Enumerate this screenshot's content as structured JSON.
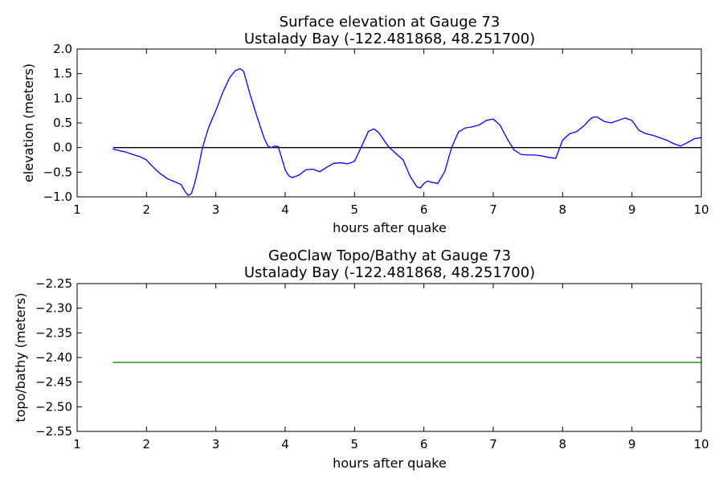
{
  "chart_data": [
    {
      "type": "line",
      "title_line1": "Surface elevation at Gauge 73",
      "title_line2": "Ustalady Bay  (-122.481868, 48.251700)",
      "xlabel": "hours after quake",
      "ylabel": "elevation (meters)",
      "xlim": [
        1,
        10
      ],
      "ylim": [
        -1.0,
        2.0
      ],
      "xticks": [
        1,
        2,
        3,
        4,
        5,
        6,
        7,
        8,
        9,
        10
      ],
      "xtick_labels": [
        "1",
        "2",
        "3",
        "4",
        "5",
        "6",
        "7",
        "8",
        "9",
        "10"
      ],
      "yticks": [
        -1.0,
        -0.5,
        0.0,
        0.5,
        1.0,
        1.5,
        2.0
      ],
      "ytick_labels": [
        "−1.0",
        "−0.5",
        "0.0",
        "0.5",
        "1.0",
        "1.5",
        "2.0"
      ],
      "grid": false,
      "reference_line": {
        "y": 0,
        "x": [
          1.52,
          10
        ],
        "color": "#000000"
      },
      "series": [
        {
          "color": "#0000ff",
          "x": [
            1.52,
            1.6,
            1.7,
            1.8,
            1.9,
            2.0,
            2.05,
            2.1,
            2.15,
            2.2,
            2.3,
            2.4,
            2.5,
            2.55,
            2.6,
            2.65,
            2.7,
            2.75,
            2.8,
            2.85,
            2.9,
            3.0,
            3.1,
            3.2,
            3.28,
            3.35,
            3.4,
            3.5,
            3.6,
            3.7,
            3.75,
            3.8,
            3.85,
            3.9,
            4.0,
            4.05,
            4.1,
            4.2,
            4.3,
            4.4,
            4.5,
            4.6,
            4.7,
            4.8,
            4.9,
            5.0,
            5.1,
            5.2,
            5.28,
            5.35,
            5.5,
            5.7,
            5.8,
            5.9,
            5.95,
            6.0,
            6.05,
            6.1,
            6.2,
            6.3,
            6.4,
            6.5,
            6.6,
            6.7,
            6.8,
            6.9,
            7.0,
            7.1,
            7.2,
            7.3,
            7.4,
            7.5,
            7.6,
            7.7,
            7.8,
            7.9,
            8.0,
            8.1,
            8.2,
            8.3,
            8.4,
            8.45,
            8.5,
            8.6,
            8.7,
            8.8,
            8.9,
            9.0,
            9.1,
            9.2,
            9.3,
            9.4,
            9.5,
            9.6,
            9.7,
            9.8,
            9.9,
            10.0
          ],
          "y": [
            -0.03,
            -0.06,
            -0.09,
            -0.14,
            -0.18,
            -0.25,
            -0.33,
            -0.4,
            -0.47,
            -0.53,
            -0.63,
            -0.69,
            -0.75,
            -0.88,
            -0.97,
            -0.93,
            -0.7,
            -0.4,
            -0.05,
            0.2,
            0.42,
            0.75,
            1.12,
            1.42,
            1.56,
            1.6,
            1.55,
            1.05,
            0.6,
            0.18,
            0.03,
            0.0,
            0.03,
            0.02,
            -0.45,
            -0.57,
            -0.61,
            -0.56,
            -0.45,
            -0.44,
            -0.49,
            -0.4,
            -0.32,
            -0.31,
            -0.33,
            -0.28,
            0.02,
            0.33,
            0.38,
            0.3,
            0.0,
            -0.25,
            -0.58,
            -0.8,
            -0.82,
            -0.73,
            -0.68,
            -0.7,
            -0.73,
            -0.49,
            0.0,
            0.32,
            0.4,
            0.42,
            0.46,
            0.55,
            0.58,
            0.45,
            0.18,
            -0.05,
            -0.14,
            -0.15,
            -0.15,
            -0.17,
            -0.2,
            -0.22,
            0.15,
            0.28,
            0.32,
            0.43,
            0.58,
            0.62,
            0.62,
            0.53,
            0.5,
            0.55,
            0.6,
            0.55,
            0.35,
            0.28,
            0.25,
            0.2,
            0.15,
            0.08,
            0.03,
            0.1,
            0.18,
            0.2
          ]
        }
      ]
    },
    {
      "type": "line",
      "title_line1": "GeoClaw Topo/Bathy at Gauge 73",
      "title_line2": "Ustalady Bay  (-122.481868, 48.251700)",
      "xlabel": "hours after quake",
      "ylabel": "topo/bathy (meters)",
      "xlim": [
        1,
        10
      ],
      "ylim": [
        -2.55,
        -2.25
      ],
      "xticks": [
        1,
        2,
        3,
        4,
        5,
        6,
        7,
        8,
        9,
        10
      ],
      "xtick_labels": [
        "1",
        "2",
        "3",
        "4",
        "5",
        "6",
        "7",
        "8",
        "9",
        "10"
      ],
      "yticks": [
        -2.55,
        -2.5,
        -2.45,
        -2.4,
        -2.35,
        -2.3,
        -2.25
      ],
      "ytick_labels": [
        "−2.55",
        "−2.50",
        "−2.45",
        "−2.40",
        "−2.35",
        "−2.30",
        "−2.25"
      ],
      "grid": false,
      "series": [
        {
          "color": "#008000",
          "x": [
            1.52,
            10
          ],
          "y": [
            -2.41,
            -2.41
          ]
        }
      ]
    }
  ]
}
